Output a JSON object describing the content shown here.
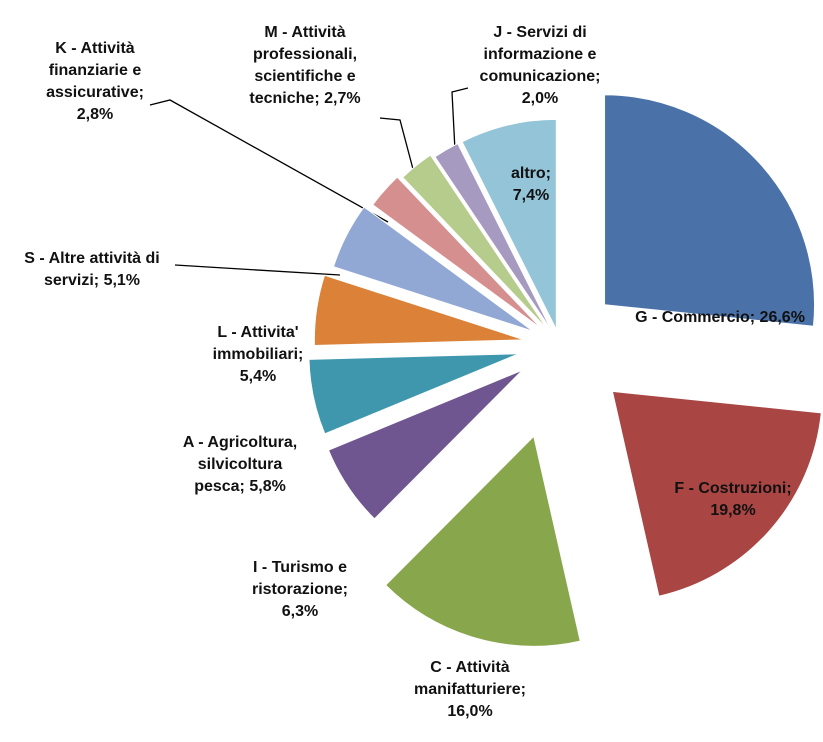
{
  "chart_data": {
    "type": "pie",
    "categories": [
      "G - Commercio;",
      "F - Costruzioni;",
      "C - Attività manifatturiere;",
      "I - Turismo e ristorazione;",
      "A - Agricoltura, silvicoltura pesca;",
      "L - Attivita' immobiliari;",
      "S - Altre attività di servizi;",
      "K - Attività finanziarie e assicurative;",
      "M - Attività professionali, scientifiche e tecniche;",
      "J - Servizi di informazione e comunicazione;",
      "altro;"
    ],
    "values": [
      26.6,
      19.8,
      16.0,
      6.3,
      5.8,
      5.4,
      5.1,
      2.8,
      2.7,
      2.0,
      7.4
    ],
    "value_labels": [
      "26,6%",
      "19,8%",
      "16,0%",
      "6,3%",
      "5,8%",
      "5,4%",
      "5,1%",
      "2,8%",
      "2,7%",
      "2,0%",
      "7,4%"
    ],
    "colors": [
      "#4a72a9",
      "#a94543",
      "#88a64c",
      "#6f5690",
      "#3e97ad",
      "#db8238",
      "#91a8d5",
      "#d58f8e",
      "#b5cc8d",
      "#a79ac0",
      "#93c4d7"
    ]
  }
}
